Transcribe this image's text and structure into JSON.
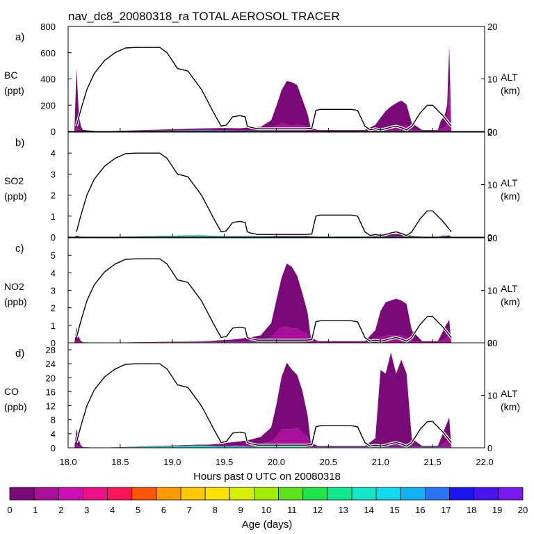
{
  "chart_data": {
    "type": "area",
    "title": "nav_dc8_20080318_ra TOTAL AEROSOL TRACER",
    "xlabel": "Hours past 0 UTC on 20080318",
    "xlim": [
      18.0,
      22.0
    ],
    "x_ticks": [
      "18.0",
      "18.5",
      "19.0",
      "19.5",
      "20.0",
      "20.5",
      "21.0",
      "21.5",
      "22.0"
    ],
    "altitude_axis": {
      "label": "ALT",
      "unit": "(km)",
      "ylim": [
        0,
        20
      ],
      "ticks": [
        "0",
        "10",
        "20"
      ],
      "track": {
        "x": [
          18.08,
          18.12,
          18.18,
          18.25,
          18.35,
          18.45,
          18.55,
          18.65,
          18.75,
          18.88,
          18.95,
          19.05,
          19.15,
          19.28,
          19.4,
          19.47,
          19.52,
          19.58,
          19.65,
          19.7,
          19.72,
          19.75,
          19.82,
          19.9,
          19.95,
          20.02,
          20.1,
          20.2,
          20.28,
          20.34,
          20.38,
          20.42,
          20.5,
          20.6,
          20.72,
          20.78,
          20.85,
          20.9,
          20.95,
          21.0,
          21.05,
          21.1,
          21.15,
          21.2,
          21.25,
          21.3,
          21.38,
          21.45,
          21.5,
          21.6,
          21.68
        ],
        "alt": [
          1.0,
          4.0,
          8.0,
          11.0,
          13.5,
          15.0,
          15.9,
          16.0,
          16.0,
          16.0,
          15.0,
          12.0,
          11.5,
          8.0,
          3.5,
          1.0,
          1.2,
          2.8,
          3.0,
          2.8,
          1.0,
          0.8,
          0.5,
          0.5,
          0.5,
          0.5,
          0.5,
          0.5,
          0.5,
          0.6,
          4.0,
          4.2,
          4.2,
          4.2,
          4.2,
          4.0,
          1.0,
          0.3,
          0.5,
          0.3,
          0.5,
          0.8,
          1.0,
          0.7,
          0.3,
          1.0,
          3.5,
          5.0,
          5.0,
          3.0,
          1.0
        ]
      }
    },
    "color_scale": {
      "label": "Age (days)",
      "tick_labels": [
        "0",
        "1",
        "2",
        "3",
        "4",
        "5",
        "6",
        "7",
        "8",
        "9",
        "10",
        "11",
        "12",
        "13",
        "14",
        "15",
        "16",
        "17",
        "18",
        "19",
        "20"
      ],
      "colors": [
        "#7a0a78",
        "#a8109a",
        "#cc10b4",
        "#ee1088",
        "#ff1555",
        "#ff5500",
        "#ff9a00",
        "#ffc800",
        "#ffe100",
        "#d8ef00",
        "#a2ee00",
        "#5ce21a",
        "#1ee648",
        "#10e890",
        "#12e8c8",
        "#12d9f0",
        "#10b2f5",
        "#2a74f5",
        "#1a14f0",
        "#4a14ee",
        "#7a18f0"
      ]
    },
    "panels": [
      {
        "letter": "a)",
        "species": "BC",
        "unit": "(ppt)",
        "ylim": [
          0,
          800
        ],
        "y_ticks": [
          "0",
          "200",
          "400",
          "600",
          "800"
        ],
        "x": [
          18.06,
          18.08,
          18.1,
          18.12,
          18.14,
          18.3,
          19.25,
          19.35,
          19.45,
          19.55,
          19.65,
          19.75,
          19.85,
          19.95,
          20.0,
          20.05,
          20.1,
          20.15,
          20.2,
          20.25,
          20.3,
          20.33,
          20.4,
          20.85,
          20.95,
          21.0,
          21.05,
          21.1,
          21.15,
          21.2,
          21.25,
          21.3,
          21.4,
          21.55,
          21.58,
          21.6,
          21.62,
          21.64,
          21.66,
          21.68
        ],
        "series": [
          {
            "age": "0-1",
            "values": [
              0,
              450,
              150,
              40,
              10,
              0,
              10,
              12,
              15,
              15,
              15,
              20,
              25,
              60,
              150,
              250,
              330,
              330,
              300,
              200,
              100,
              20,
              5,
              5,
              30,
              80,
              120,
              150,
              170,
              190,
              160,
              50,
              5,
              5,
              60,
              80,
              100,
              150,
              300,
              0
            ]
          },
          {
            "age": "1-2",
            "values": [
              0,
              30,
              20,
              5,
              2,
              0,
              4,
              4,
              4,
              4,
              4,
              5,
              5,
              20,
              40,
              60,
              50,
              40,
              50,
              40,
              30,
              5,
              2,
              2,
              15,
              20,
              30,
              35,
              40,
              40,
              40,
              10,
              2,
              2,
              20,
              20,
              30,
              50,
              350,
              0
            ]
          },
          {
            "age": "11-15",
            "values": [
              0,
              0,
              0,
              0,
              0,
              0,
              8,
              8,
              6,
              6,
              5,
              5,
              5,
              5,
              5,
              5,
              4,
              4,
              4,
              4,
              3,
              3,
              3,
              3,
              5,
              5,
              5,
              5,
              5,
              5,
              5,
              5,
              3,
              3,
              3,
              3,
              3,
              3,
              3,
              0
            ]
          }
        ]
      },
      {
        "letter": "b)",
        "species": "SO2",
        "unit": "(ppb)",
        "ylim": [
          0,
          5
        ],
        "y_ticks": [
          "0",
          "1",
          "2",
          "3",
          "4"
        ],
        "x": [
          18.06,
          18.08,
          18.1,
          18.12,
          18.14,
          18.3,
          19.25,
          19.35,
          19.45,
          19.55,
          19.65,
          19.75,
          19.85,
          19.95,
          20.0,
          20.05,
          20.1,
          20.15,
          20.2,
          20.25,
          20.3,
          20.33,
          20.4,
          20.85,
          20.95,
          21.0,
          21.05,
          21.1,
          21.15,
          21.2,
          21.25,
          21.3,
          21.4,
          21.55,
          21.58,
          21.6,
          21.62,
          21.64,
          21.66,
          21.68
        ],
        "series": [
          {
            "age": "0-1",
            "values": [
              0,
              0.05,
              0.03,
              0.01,
              0,
              0,
              0.01,
              0.01,
              0.01,
              0.01,
              0.01,
              0.01,
              0.01,
              0.02,
              0.05,
              0.08,
              0.1,
              0.1,
              0.1,
              0.06,
              0.03,
              0.01,
              0,
              0,
              0.02,
              0.04,
              0.06,
              0.1,
              0.12,
              0.12,
              0.1,
              0.03,
              0,
              0,
              0.02,
              0.03,
              0.04,
              0.05,
              0.07,
              0
            ]
          },
          {
            "age": "11-15",
            "values": [
              0,
              0.02,
              0.01,
              0,
              0,
              0,
              0.08,
              0.06,
              0.05,
              0.04,
              0.04,
              0.04,
              0.04,
              0.04,
              0.03,
              0.03,
              0.03,
              0.03,
              0.03,
              0.03,
              0.03,
              0.03,
              0.02,
              0.03,
              0.03,
              0.03,
              0.03,
              0.03,
              0.03,
              0.03,
              0.03,
              0.03,
              0.02,
              0.02,
              0.02,
              0.05,
              0.03,
              0.02,
              0.02,
              0
            ]
          }
        ]
      },
      {
        "letter": "c)",
        "species": "NO2",
        "unit": "(ppb)",
        "ylim": [
          0,
          6
        ],
        "y_ticks": [
          "0",
          "1",
          "2",
          "3",
          "4",
          "5"
        ],
        "x": [
          18.06,
          18.08,
          18.1,
          18.12,
          18.14,
          18.3,
          19.25,
          19.35,
          19.45,
          19.55,
          19.65,
          19.75,
          19.85,
          19.95,
          20.0,
          20.05,
          20.1,
          20.15,
          20.2,
          20.25,
          20.3,
          20.33,
          20.4,
          20.85,
          20.95,
          21.0,
          21.05,
          21.1,
          21.15,
          21.2,
          21.25,
          21.3,
          21.4,
          21.55,
          21.58,
          21.6,
          21.62,
          21.64,
          21.66,
          21.68
        ],
        "series": [
          {
            "age": "0-1",
            "values": [
              0,
              0.8,
              0.3,
              0.1,
              0.03,
              0,
              0.03,
              0.05,
              0.08,
              0.1,
              0.15,
              0.2,
              0.3,
              0.8,
              1.8,
              2.8,
              3.6,
              3.5,
              3.0,
              2.2,
              1.2,
              0.2,
              0.05,
              0.05,
              0.5,
              1.5,
              1.9,
              2.0,
              2.1,
              2.0,
              1.9,
              0.6,
              0.05,
              0.05,
              0.3,
              0.5,
              0.7,
              0.8,
              0.9,
              0
            ]
          },
          {
            "age": "1-2",
            "values": [
              0,
              0.1,
              0.05,
              0.02,
              0,
              0,
              0.02,
              0.02,
              0.03,
              0.04,
              0.05,
              0.08,
              0.1,
              0.3,
              0.6,
              0.9,
              0.9,
              0.8,
              0.8,
              0.6,
              0.5,
              0.1,
              0.02,
              0.02,
              0.2,
              0.3,
              0.4,
              0.4,
              0.4,
              0.4,
              0.3,
              0.1,
              0.02,
              0.02,
              0.1,
              0.15,
              0.2,
              0.3,
              0.4,
              0
            ]
          },
          {
            "age": "11-15",
            "values": [
              0,
              0,
              0,
              0,
              0,
              0,
              0.03,
              0.03,
              0.03,
              0.03,
              0.03,
              0.03,
              0.03,
              0.03,
              0.03,
              0.03,
              0.03,
              0.03,
              0.03,
              0.03,
              0.02,
              0.02,
              0.02,
              0.02,
              0.02,
              0.02,
              0.02,
              0.02,
              0.02,
              0.02,
              0.02,
              0.02,
              0.02,
              0.02,
              0.02,
              0.02,
              0.02,
              0.02,
              0.02,
              0
            ]
          }
        ]
      },
      {
        "letter": "d)",
        "species": "CO",
        "unit": "(ppb)",
        "ylim": [
          0,
          30
        ],
        "y_ticks": [
          "0",
          "4",
          "8",
          "12",
          "16",
          "20",
          "24",
          "28"
        ],
        "x": [
          18.06,
          18.08,
          18.1,
          18.12,
          18.14,
          18.3,
          19.25,
          19.35,
          19.45,
          19.55,
          19.65,
          19.75,
          19.85,
          19.95,
          20.0,
          20.05,
          20.1,
          20.15,
          20.2,
          20.25,
          20.3,
          20.33,
          20.4,
          20.85,
          20.95,
          21.0,
          21.05,
          21.1,
          21.15,
          21.2,
          21.25,
          21.3,
          21.4,
          21.55,
          21.58,
          21.6,
          21.62,
          21.64,
          21.66,
          21.68
        ],
        "series": [
          {
            "age": "0-1",
            "values": [
              0,
              4.5,
              2.0,
              0.6,
              0.2,
              0,
              0.2,
              0.3,
              0.5,
              0.8,
              1.0,
              1.5,
              2.0,
              4.0,
              9.0,
              15.0,
              19.0,
              17.0,
              15.0,
              12.0,
              6.0,
              1.0,
              0.2,
              0.2,
              2.0,
              21.0,
              20.0,
              26.0,
              20.0,
              24.0,
              20.0,
              2.0,
              0.2,
              0.2,
              2.0,
              3.0,
              4.0,
              5.0,
              6.0,
              0
            ]
          },
          {
            "age": "1-2",
            "values": [
              0,
              1.0,
              0.5,
              0.2,
              0,
              0,
              0.1,
              0.1,
              0.2,
              0.3,
              0.4,
              0.5,
              0.8,
              1.5,
              3.0,
              5.0,
              5.0,
              5.0,
              5.5,
              4.0,
              3.0,
              0.3,
              0.1,
              0.1,
              0.5,
              1.0,
              1.0,
              1.0,
              1.0,
              1.0,
              1.0,
              0.5,
              0.1,
              0.1,
              0.5,
              1.0,
              1.5,
              2.0,
              2.5,
              0
            ]
          },
          {
            "age": "11-15",
            "values": [
              0,
              0,
              0,
              0,
              0,
              0,
              0.6,
              0.5,
              0.4,
              0.4,
              0.4,
              0.3,
              0.3,
              0.3,
              0.3,
              0.3,
              0.3,
              0.3,
              0.3,
              0.3,
              0.2,
              0.2,
              0.2,
              0.2,
              0.2,
              0.2,
              0.2,
              0.2,
              0.2,
              0.2,
              0.2,
              0.2,
              0.2,
              0.2,
              0.2,
              0.2,
              0.2,
              0.2,
              0.2,
              0
            ]
          }
        ]
      }
    ]
  }
}
